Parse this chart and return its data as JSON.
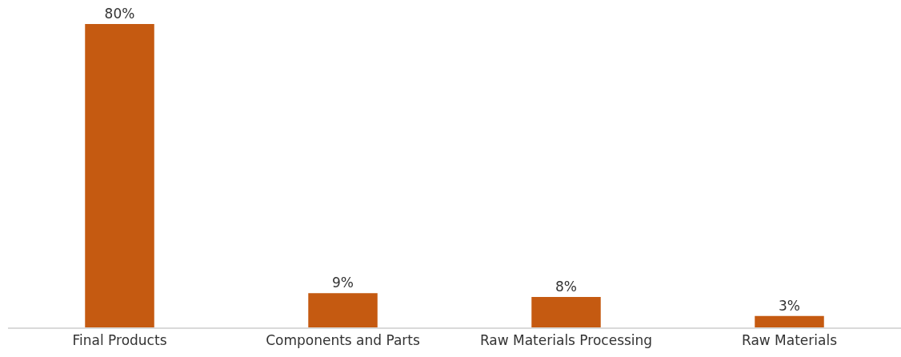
{
  "chart_data": {
    "type": "bar",
    "categories": [
      "Final Products",
      "Components and Parts",
      "Raw Materials Processing",
      "Raw Materials"
    ],
    "values": [
      80,
      9,
      8,
      3
    ],
    "value_labels": [
      "80%",
      "9%",
      "8%",
      "3%"
    ],
    "color": "#c55a11"
  }
}
